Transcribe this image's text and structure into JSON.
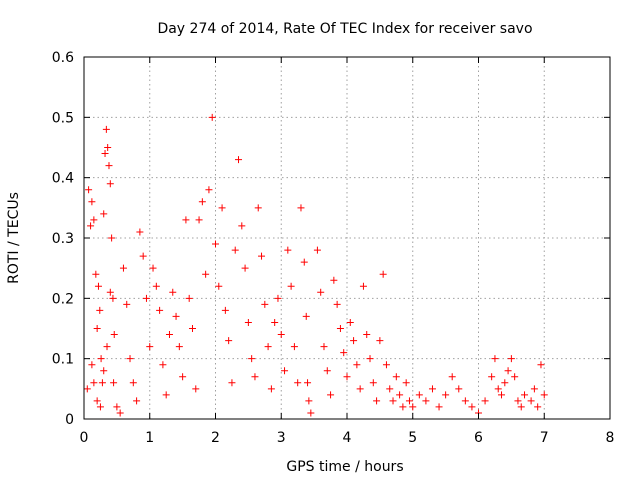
{
  "chart_data": {
    "type": "scatter",
    "title": "Day 274 of 2014, Rate Of TEC Index for receiver savo",
    "xlabel": "GPS time / hours",
    "ylabel": "ROTI / TECUs",
    "xlim": [
      0,
      8
    ],
    "ylim": [
      0,
      0.6
    ],
    "xticks": [
      "0",
      "1",
      "2",
      "3",
      "4",
      "5",
      "6",
      "7",
      "8"
    ],
    "yticks": [
      "0",
      "0.1",
      "0.2",
      "0.3",
      "0.4",
      "0.5",
      "0.6"
    ],
    "grid": true,
    "marker": "+",
    "color": "#ff0000",
    "series": [
      {
        "name": "ROTI",
        "points": [
          [
            0.05,
            0.05
          ],
          [
            0.07,
            0.38
          ],
          [
            0.1,
            0.32
          ],
          [
            0.12,
            0.36
          ],
          [
            0.15,
            0.33
          ],
          [
            0.18,
            0.24
          ],
          [
            0.2,
            0.15
          ],
          [
            0.22,
            0.22
          ],
          [
            0.24,
            0.18
          ],
          [
            0.26,
            0.1
          ],
          [
            0.28,
            0.06
          ],
          [
            0.3,
            0.34
          ],
          [
            0.32,
            0.44
          ],
          [
            0.34,
            0.48
          ],
          [
            0.36,
            0.45
          ],
          [
            0.38,
            0.42
          ],
          [
            0.4,
            0.39
          ],
          [
            0.42,
            0.3
          ],
          [
            0.44,
            0.2
          ],
          [
            0.46,
            0.14
          ],
          [
            0.12,
            0.09
          ],
          [
            0.15,
            0.06
          ],
          [
            0.2,
            0.03
          ],
          [
            0.25,
            0.02
          ],
          [
            0.3,
            0.08
          ],
          [
            0.35,
            0.12
          ],
          [
            0.4,
            0.21
          ],
          [
            0.45,
            0.06
          ],
          [
            0.5,
            0.02
          ],
          [
            0.55,
            0.01
          ],
          [
            0.6,
            0.25
          ],
          [
            0.65,
            0.19
          ],
          [
            0.7,
            0.1
          ],
          [
            0.75,
            0.06
          ],
          [
            0.8,
            0.03
          ],
          [
            0.85,
            0.31
          ],
          [
            0.9,
            0.27
          ],
          [
            0.95,
            0.2
          ],
          [
            1.0,
            0.12
          ],
          [
            1.05,
            0.25
          ],
          [
            1.1,
            0.22
          ],
          [
            1.15,
            0.18
          ],
          [
            1.2,
            0.09
          ],
          [
            1.25,
            0.04
          ],
          [
            1.3,
            0.14
          ],
          [
            1.35,
            0.21
          ],
          [
            1.4,
            0.17
          ],
          [
            1.45,
            0.12
          ],
          [
            1.5,
            0.07
          ],
          [
            1.55,
            0.33
          ],
          [
            1.6,
            0.2
          ],
          [
            1.65,
            0.15
          ],
          [
            1.7,
            0.05
          ],
          [
            1.75,
            0.33
          ],
          [
            1.8,
            0.36
          ],
          [
            1.85,
            0.24
          ],
          [
            1.9,
            0.38
          ],
          [
            1.95,
            0.5
          ],
          [
            2.0,
            0.29
          ],
          [
            2.05,
            0.22
          ],
          [
            2.1,
            0.35
          ],
          [
            2.15,
            0.18
          ],
          [
            2.2,
            0.13
          ],
          [
            2.25,
            0.06
          ],
          [
            2.3,
            0.28
          ],
          [
            2.35,
            0.43
          ],
          [
            2.4,
            0.32
          ],
          [
            2.45,
            0.25
          ],
          [
            2.5,
            0.16
          ],
          [
            2.55,
            0.1
          ],
          [
            2.6,
            0.07
          ],
          [
            2.65,
            0.35
          ],
          [
            2.7,
            0.27
          ],
          [
            2.75,
            0.19
          ],
          [
            2.8,
            0.12
          ],
          [
            2.85,
            0.05
          ],
          [
            2.9,
            0.16
          ],
          [
            2.95,
            0.2
          ],
          [
            3.0,
            0.14
          ],
          [
            3.05,
            0.08
          ],
          [
            3.1,
            0.28
          ],
          [
            3.15,
            0.22
          ],
          [
            3.2,
            0.12
          ],
          [
            3.25,
            0.06
          ],
          [
            3.3,
            0.35
          ],
          [
            3.35,
            0.26
          ],
          [
            3.38,
            0.17
          ],
          [
            3.4,
            0.06
          ],
          [
            3.42,
            0.03
          ],
          [
            3.45,
            0.01
          ],
          [
            3.55,
            0.28
          ],
          [
            3.6,
            0.21
          ],
          [
            3.65,
            0.12
          ],
          [
            3.7,
            0.08
          ],
          [
            3.75,
            0.04
          ],
          [
            3.8,
            0.23
          ],
          [
            3.85,
            0.19
          ],
          [
            3.9,
            0.15
          ],
          [
            3.95,
            0.11
          ],
          [
            4.0,
            0.07
          ],
          [
            4.05,
            0.16
          ],
          [
            4.1,
            0.13
          ],
          [
            4.15,
            0.09
          ],
          [
            4.2,
            0.05
          ],
          [
            4.25,
            0.22
          ],
          [
            4.3,
            0.14
          ],
          [
            4.35,
            0.1
          ],
          [
            4.4,
            0.06
          ],
          [
            4.45,
            0.03
          ],
          [
            4.5,
            0.13
          ],
          [
            4.55,
            0.24
          ],
          [
            4.6,
            0.09
          ],
          [
            4.65,
            0.05
          ],
          [
            4.7,
            0.03
          ],
          [
            4.75,
            0.07
          ],
          [
            4.8,
            0.04
          ],
          [
            4.85,
            0.02
          ],
          [
            4.9,
            0.06
          ],
          [
            4.95,
            0.03
          ],
          [
            5.0,
            0.02
          ],
          [
            5.1,
            0.04
          ],
          [
            5.2,
            0.03
          ],
          [
            5.3,
            0.05
          ],
          [
            5.4,
            0.02
          ],
          [
            5.5,
            0.04
          ],
          [
            5.6,
            0.07
          ],
          [
            5.7,
            0.05
          ],
          [
            5.8,
            0.03
          ],
          [
            5.9,
            0.02
          ],
          [
            6.0,
            0.01
          ],
          [
            6.1,
            0.03
          ],
          [
            6.2,
            0.07
          ],
          [
            6.25,
            0.1
          ],
          [
            6.3,
            0.05
          ],
          [
            6.35,
            0.04
          ],
          [
            6.4,
            0.06
          ],
          [
            6.45,
            0.08
          ],
          [
            6.5,
            0.1
          ],
          [
            6.55,
            0.07
          ],
          [
            6.6,
            0.03
          ],
          [
            6.65,
            0.02
          ],
          [
            6.7,
            0.04
          ],
          [
            6.8,
            0.03
          ],
          [
            6.85,
            0.05
          ],
          [
            6.9,
            0.02
          ],
          [
            6.95,
            0.09
          ],
          [
            7.0,
            0.04
          ]
        ]
      }
    ]
  }
}
